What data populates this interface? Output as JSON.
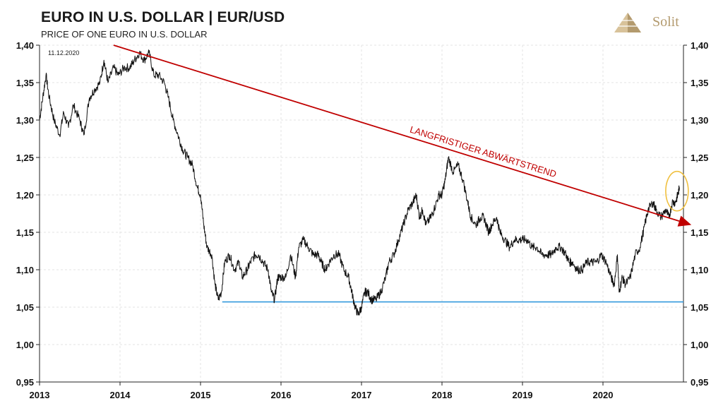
{
  "header": {
    "title": "EURO IN U.S. DOLLAR | EUR/USD",
    "subtitle": "PRICE OF ONE EURO IN U.S. DOLLAR"
  },
  "logo": {
    "text": "Solit",
    "icon": "pyramid-icon",
    "color": "#b39a6e"
  },
  "chart_data": {
    "type": "line",
    "date_label": "11.12.2020",
    "xlim": [
      2013.0,
      2021.0
    ],
    "ylim": [
      0.95,
      1.4
    ],
    "x_ticks": [
      "2013",
      "2014",
      "2015",
      "2016",
      "2017",
      "2018",
      "2019",
      "2020"
    ],
    "y_ticks": [
      "0,95",
      "1,00",
      "1,05",
      "1,10",
      "1,15",
      "1,20",
      "1,25",
      "1,30",
      "1,35",
      "1,40"
    ],
    "y_axis": "left and right",
    "grid": "dashed, light",
    "series": [
      {
        "color": "#111111",
        "points": [
          [
            2013.0,
            1.3
          ],
          [
            2013.04,
            1.33
          ],
          [
            2013.08,
            1.36
          ],
          [
            2013.12,
            1.33
          ],
          [
            2013.18,
            1.3
          ],
          [
            2013.25,
            1.28
          ],
          [
            2013.3,
            1.31
          ],
          [
            2013.36,
            1.29
          ],
          [
            2013.42,
            1.32
          ],
          [
            2013.5,
            1.3
          ],
          [
            2013.55,
            1.28
          ],
          [
            2013.62,
            1.33
          ],
          [
            2013.68,
            1.34
          ],
          [
            2013.75,
            1.35
          ],
          [
            2013.8,
            1.38
          ],
          [
            2013.85,
            1.35
          ],
          [
            2013.92,
            1.37
          ],
          [
            2013.98,
            1.36
          ],
          [
            2014.05,
            1.37
          ],
          [
            2014.12,
            1.37
          ],
          [
            2014.18,
            1.38
          ],
          [
            2014.24,
            1.39
          ],
          [
            2014.3,
            1.38
          ],
          [
            2014.36,
            1.39
          ],
          [
            2014.42,
            1.36
          ],
          [
            2014.48,
            1.36
          ],
          [
            2014.55,
            1.35
          ],
          [
            2014.6,
            1.33
          ],
          [
            2014.66,
            1.3
          ],
          [
            2014.72,
            1.28
          ],
          [
            2014.78,
            1.26
          ],
          [
            2014.84,
            1.25
          ],
          [
            2014.9,
            1.24
          ],
          [
            2014.96,
            1.21
          ],
          [
            2015.0,
            1.2
          ],
          [
            2015.04,
            1.16
          ],
          [
            2015.08,
            1.13
          ],
          [
            2015.14,
            1.12
          ],
          [
            2015.18,
            1.08
          ],
          [
            2015.22,
            1.06
          ],
          [
            2015.26,
            1.07
          ],
          [
            2015.3,
            1.11
          ],
          [
            2015.36,
            1.12
          ],
          [
            2015.42,
            1.1
          ],
          [
            2015.48,
            1.11
          ],
          [
            2015.52,
            1.09
          ],
          [
            2015.58,
            1.1
          ],
          [
            2015.62,
            1.11
          ],
          [
            2015.68,
            1.12
          ],
          [
            2015.72,
            1.12
          ],
          [
            2015.78,
            1.11
          ],
          [
            2015.84,
            1.1
          ],
          [
            2015.88,
            1.07
          ],
          [
            2015.92,
            1.06
          ],
          [
            2015.96,
            1.09
          ],
          [
            2016.0,
            1.09
          ],
          [
            2016.06,
            1.09
          ],
          [
            2016.12,
            1.12
          ],
          [
            2016.18,
            1.09
          ],
          [
            2016.22,
            1.13
          ],
          [
            2016.28,
            1.14
          ],
          [
            2016.34,
            1.13
          ],
          [
            2016.4,
            1.12
          ],
          [
            2016.46,
            1.12
          ],
          [
            2016.5,
            1.11
          ],
          [
            2016.55,
            1.1
          ],
          [
            2016.6,
            1.11
          ],
          [
            2016.66,
            1.12
          ],
          [
            2016.72,
            1.12
          ],
          [
            2016.78,
            1.1
          ],
          [
            2016.84,
            1.09
          ],
          [
            2016.88,
            1.07
          ],
          [
            2016.92,
            1.05
          ],
          [
            2016.96,
            1.04
          ],
          [
            2017.0,
            1.05
          ],
          [
            2017.04,
            1.07
          ],
          [
            2017.08,
            1.07
          ],
          [
            2017.12,
            1.06
          ],
          [
            2017.18,
            1.06
          ],
          [
            2017.24,
            1.07
          ],
          [
            2017.3,
            1.09
          ],
          [
            2017.34,
            1.11
          ],
          [
            2017.4,
            1.12
          ],
          [
            2017.46,
            1.14
          ],
          [
            2017.52,
            1.16
          ],
          [
            2017.58,
            1.18
          ],
          [
            2017.64,
            1.19
          ],
          [
            2017.68,
            1.2
          ],
          [
            2017.72,
            1.17
          ],
          [
            2017.76,
            1.18
          ],
          [
            2017.8,
            1.16
          ],
          [
            2017.86,
            1.17
          ],
          [
            2017.9,
            1.18
          ],
          [
            2017.96,
            1.2
          ],
          [
            2018.0,
            1.2
          ],
          [
            2018.04,
            1.22
          ],
          [
            2018.08,
            1.25
          ],
          [
            2018.14,
            1.23
          ],
          [
            2018.2,
            1.24
          ],
          [
            2018.26,
            1.22
          ],
          [
            2018.32,
            1.19
          ],
          [
            2018.36,
            1.17
          ],
          [
            2018.42,
            1.16
          ],
          [
            2018.48,
            1.17
          ],
          [
            2018.52,
            1.17
          ],
          [
            2018.58,
            1.15
          ],
          [
            2018.62,
            1.16
          ],
          [
            2018.68,
            1.17
          ],
          [
            2018.72,
            1.15
          ],
          [
            2018.78,
            1.14
          ],
          [
            2018.84,
            1.13
          ],
          [
            2018.9,
            1.14
          ],
          [
            2018.96,
            1.14
          ],
          [
            2019.0,
            1.14
          ],
          [
            2019.06,
            1.14
          ],
          [
            2019.12,
            1.13
          ],
          [
            2019.18,
            1.13
          ],
          [
            2019.24,
            1.12
          ],
          [
            2019.3,
            1.12
          ],
          [
            2019.36,
            1.12
          ],
          [
            2019.42,
            1.13
          ],
          [
            2019.48,
            1.13
          ],
          [
            2019.54,
            1.12
          ],
          [
            2019.58,
            1.11
          ],
          [
            2019.62,
            1.11
          ],
          [
            2019.68,
            1.1
          ],
          [
            2019.74,
            1.1
          ],
          [
            2019.8,
            1.11
          ],
          [
            2019.86,
            1.11
          ],
          [
            2019.92,
            1.11
          ],
          [
            2019.98,
            1.12
          ],
          [
            2020.04,
            1.11
          ],
          [
            2020.1,
            1.09
          ],
          [
            2020.14,
            1.08
          ],
          [
            2020.18,
            1.12
          ],
          [
            2020.2,
            1.07
          ],
          [
            2020.24,
            1.09
          ],
          [
            2020.28,
            1.08
          ],
          [
            2020.34,
            1.09
          ],
          [
            2020.4,
            1.12
          ],
          [
            2020.46,
            1.13
          ],
          [
            2020.52,
            1.16
          ],
          [
            2020.56,
            1.18
          ],
          [
            2020.62,
            1.19
          ],
          [
            2020.66,
            1.18
          ],
          [
            2020.72,
            1.17
          ],
          [
            2020.78,
            1.18
          ],
          [
            2020.82,
            1.17
          ],
          [
            2020.86,
            1.19
          ],
          [
            2020.9,
            1.19
          ],
          [
            2020.93,
            1.2
          ],
          [
            2020.95,
            1.21
          ]
        ]
      }
    ],
    "annotations": [
      {
        "type": "trendline",
        "label": "LANGFRISTIGER ABWÄRTSTREND",
        "color": "#c00000",
        "from": [
          2013.92,
          1.4
        ],
        "to": [
          2021.0,
          1.165
        ]
      },
      {
        "type": "support_line",
        "color": "#3399dd",
        "from": [
          2015.27,
          1.057
        ],
        "to": [
          2021.0,
          1.057
        ]
      },
      {
        "type": "ellipse_highlight",
        "color": "#f0c040",
        "center": [
          2020.92,
          1.205
        ]
      }
    ]
  }
}
